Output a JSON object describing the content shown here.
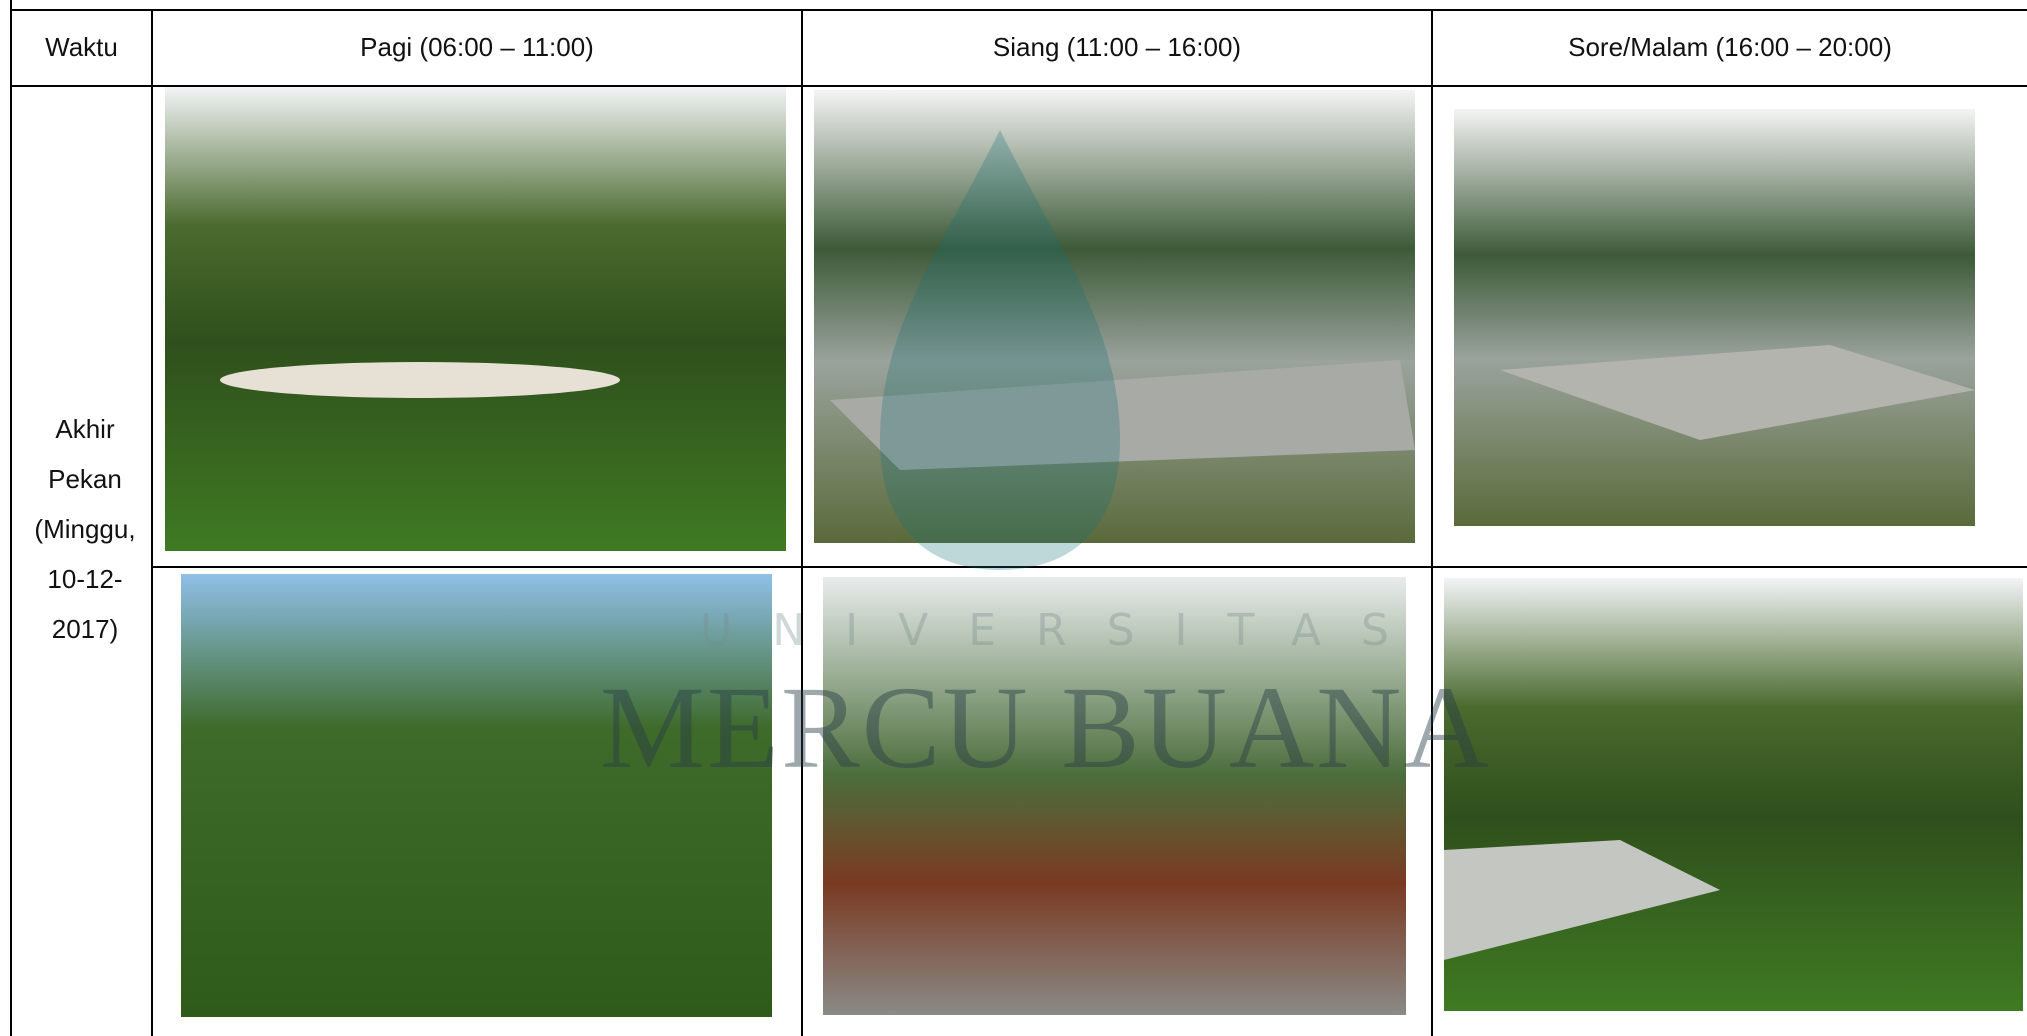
{
  "table": {
    "header": [
      "Waktu",
      "Pagi (06:00 – 11:00)",
      "Siang (11:00 – 16:00)",
      "Sore/Malam (16:00 – 20:00)"
    ],
    "row_label": "Akhir Pekan (Minggu, 10-12-2017)"
  },
  "watermark": {
    "line1": "UNIVERSITAS",
    "line2": "MERCU BUANA"
  }
}
